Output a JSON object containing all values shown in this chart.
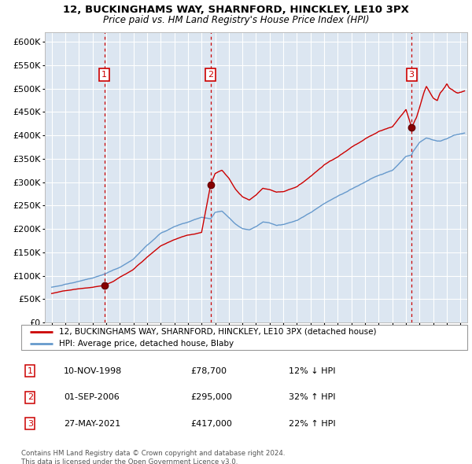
{
  "title1": "12, BUCKINGHAMS WAY, SHARNFORD, HINCKLEY, LE10 3PX",
  "title2": "Price paid vs. HM Land Registry's House Price Index (HPI)",
  "legend_red": "12, BUCKINGHAMS WAY, SHARNFORD, HINCKLEY, LE10 3PX (detached house)",
  "legend_blue": "HPI: Average price, detached house, Blaby",
  "copyright": "Contains HM Land Registry data © Crown copyright and database right 2024.\nThis data is licensed under the Open Government Licence v3.0.",
  "transactions": [
    {
      "num": 1,
      "date": "10-NOV-1998",
      "price": 78700,
      "price_str": "£78,700",
      "pct": "12%",
      "dir": "↓",
      "year": 1998.86
    },
    {
      "num": 2,
      "date": "01-SEP-2006",
      "price": 295000,
      "price_str": "£295,000",
      "pct": "32%",
      "dir": "↑",
      "year": 2006.67
    },
    {
      "num": 3,
      "date": "27-MAY-2021",
      "price": 417000,
      "price_str": "£417,000",
      "pct": "22%",
      "dir": "↑",
      "year": 2021.41
    }
  ],
  "plot_bg": "#dce6f1",
  "grid_color": "#ffffff",
  "red_color": "#cc0000",
  "blue_color": "#6699cc",
  "ylim": [
    0,
    620000
  ],
  "yticks": [
    0,
    50000,
    100000,
    150000,
    200000,
    250000,
    300000,
    350000,
    400000,
    450000,
    500000,
    550000,
    600000
  ],
  "xlim_start": 1994.5,
  "xlim_end": 2025.5,
  "hpi_waypoints": [
    [
      1995.0,
      75000
    ],
    [
      1996.0,
      82000
    ],
    [
      1997.0,
      88000
    ],
    [
      1998.0,
      95000
    ],
    [
      1999.0,
      105000
    ],
    [
      2000.0,
      118000
    ],
    [
      2001.0,
      135000
    ],
    [
      2002.0,
      165000
    ],
    [
      2003.0,
      190000
    ],
    [
      2004.0,
      205000
    ],
    [
      2005.0,
      215000
    ],
    [
      2006.0,
      225000
    ],
    [
      2006.67,
      221000
    ],
    [
      2007.0,
      235000
    ],
    [
      2007.5,
      238000
    ],
    [
      2008.0,
      225000
    ],
    [
      2008.5,
      210000
    ],
    [
      2009.0,
      200000
    ],
    [
      2009.5,
      198000
    ],
    [
      2010.0,
      205000
    ],
    [
      2010.5,
      215000
    ],
    [
      2011.0,
      212000
    ],
    [
      2011.5,
      208000
    ],
    [
      2012.0,
      210000
    ],
    [
      2013.0,
      218000
    ],
    [
      2014.0,
      235000
    ],
    [
      2015.0,
      255000
    ],
    [
      2016.0,
      270000
    ],
    [
      2017.0,
      285000
    ],
    [
      2018.0,
      300000
    ],
    [
      2019.0,
      315000
    ],
    [
      2020.0,
      325000
    ],
    [
      2020.5,
      340000
    ],
    [
      2021.0,
      355000
    ],
    [
      2021.41,
      358000
    ],
    [
      2021.5,
      365000
    ],
    [
      2022.0,
      385000
    ],
    [
      2022.5,
      395000
    ],
    [
      2023.0,
      390000
    ],
    [
      2023.5,
      388000
    ],
    [
      2024.0,
      392000
    ],
    [
      2024.5,
      400000
    ],
    [
      2025.3,
      405000
    ]
  ],
  "red_waypoints_seg1": [
    [
      1995.0,
      62000
    ],
    [
      1996.0,
      68000
    ],
    [
      1997.0,
      72000
    ],
    [
      1998.0,
      75000
    ],
    [
      1998.86,
      78700
    ]
  ],
  "red_waypoints_seg2": [
    [
      1998.86,
      78700
    ],
    [
      1999.5,
      87000
    ],
    [
      2000.0,
      97000
    ],
    [
      2001.0,
      113000
    ],
    [
      2002.0,
      140000
    ],
    [
      2003.0,
      163000
    ],
    [
      2004.0,
      177000
    ],
    [
      2005.0,
      187000
    ],
    [
      2006.0,
      192000
    ],
    [
      2006.67,
      295000
    ]
  ],
  "red_waypoints_seg3": [
    [
      2006.67,
      295000
    ],
    [
      2007.0,
      318000
    ],
    [
      2007.5,
      325000
    ],
    [
      2008.0,
      308000
    ],
    [
      2008.5,
      285000
    ],
    [
      2009.0,
      268000
    ],
    [
      2009.5,
      262000
    ],
    [
      2010.0,
      273000
    ],
    [
      2010.5,
      287000
    ],
    [
      2011.0,
      284000
    ],
    [
      2011.5,
      278000
    ],
    [
      2012.0,
      280000
    ],
    [
      2013.0,
      290000
    ],
    [
      2014.0,
      312000
    ],
    [
      2015.0,
      337000
    ],
    [
      2016.0,
      355000
    ],
    [
      2017.0,
      374000
    ],
    [
      2018.0,
      392000
    ],
    [
      2019.0,
      408000
    ],
    [
      2020.0,
      418000
    ],
    [
      2020.5,
      437000
    ],
    [
      2021.0,
      455000
    ],
    [
      2021.41,
      417000
    ]
  ],
  "red_waypoints_seg4": [
    [
      2021.41,
      417000
    ],
    [
      2021.8,
      440000
    ],
    [
      2022.0,
      460000
    ],
    [
      2022.3,
      490000
    ],
    [
      2022.5,
      505000
    ],
    [
      2022.7,
      495000
    ],
    [
      2023.0,
      480000
    ],
    [
      2023.3,
      475000
    ],
    [
      2023.5,
      490000
    ],
    [
      2023.8,
      500000
    ],
    [
      2024.0,
      510000
    ],
    [
      2024.2,
      500000
    ],
    [
      2024.5,
      495000
    ],
    [
      2024.8,
      490000
    ],
    [
      2025.0,
      492000
    ],
    [
      2025.3,
      495000
    ]
  ]
}
